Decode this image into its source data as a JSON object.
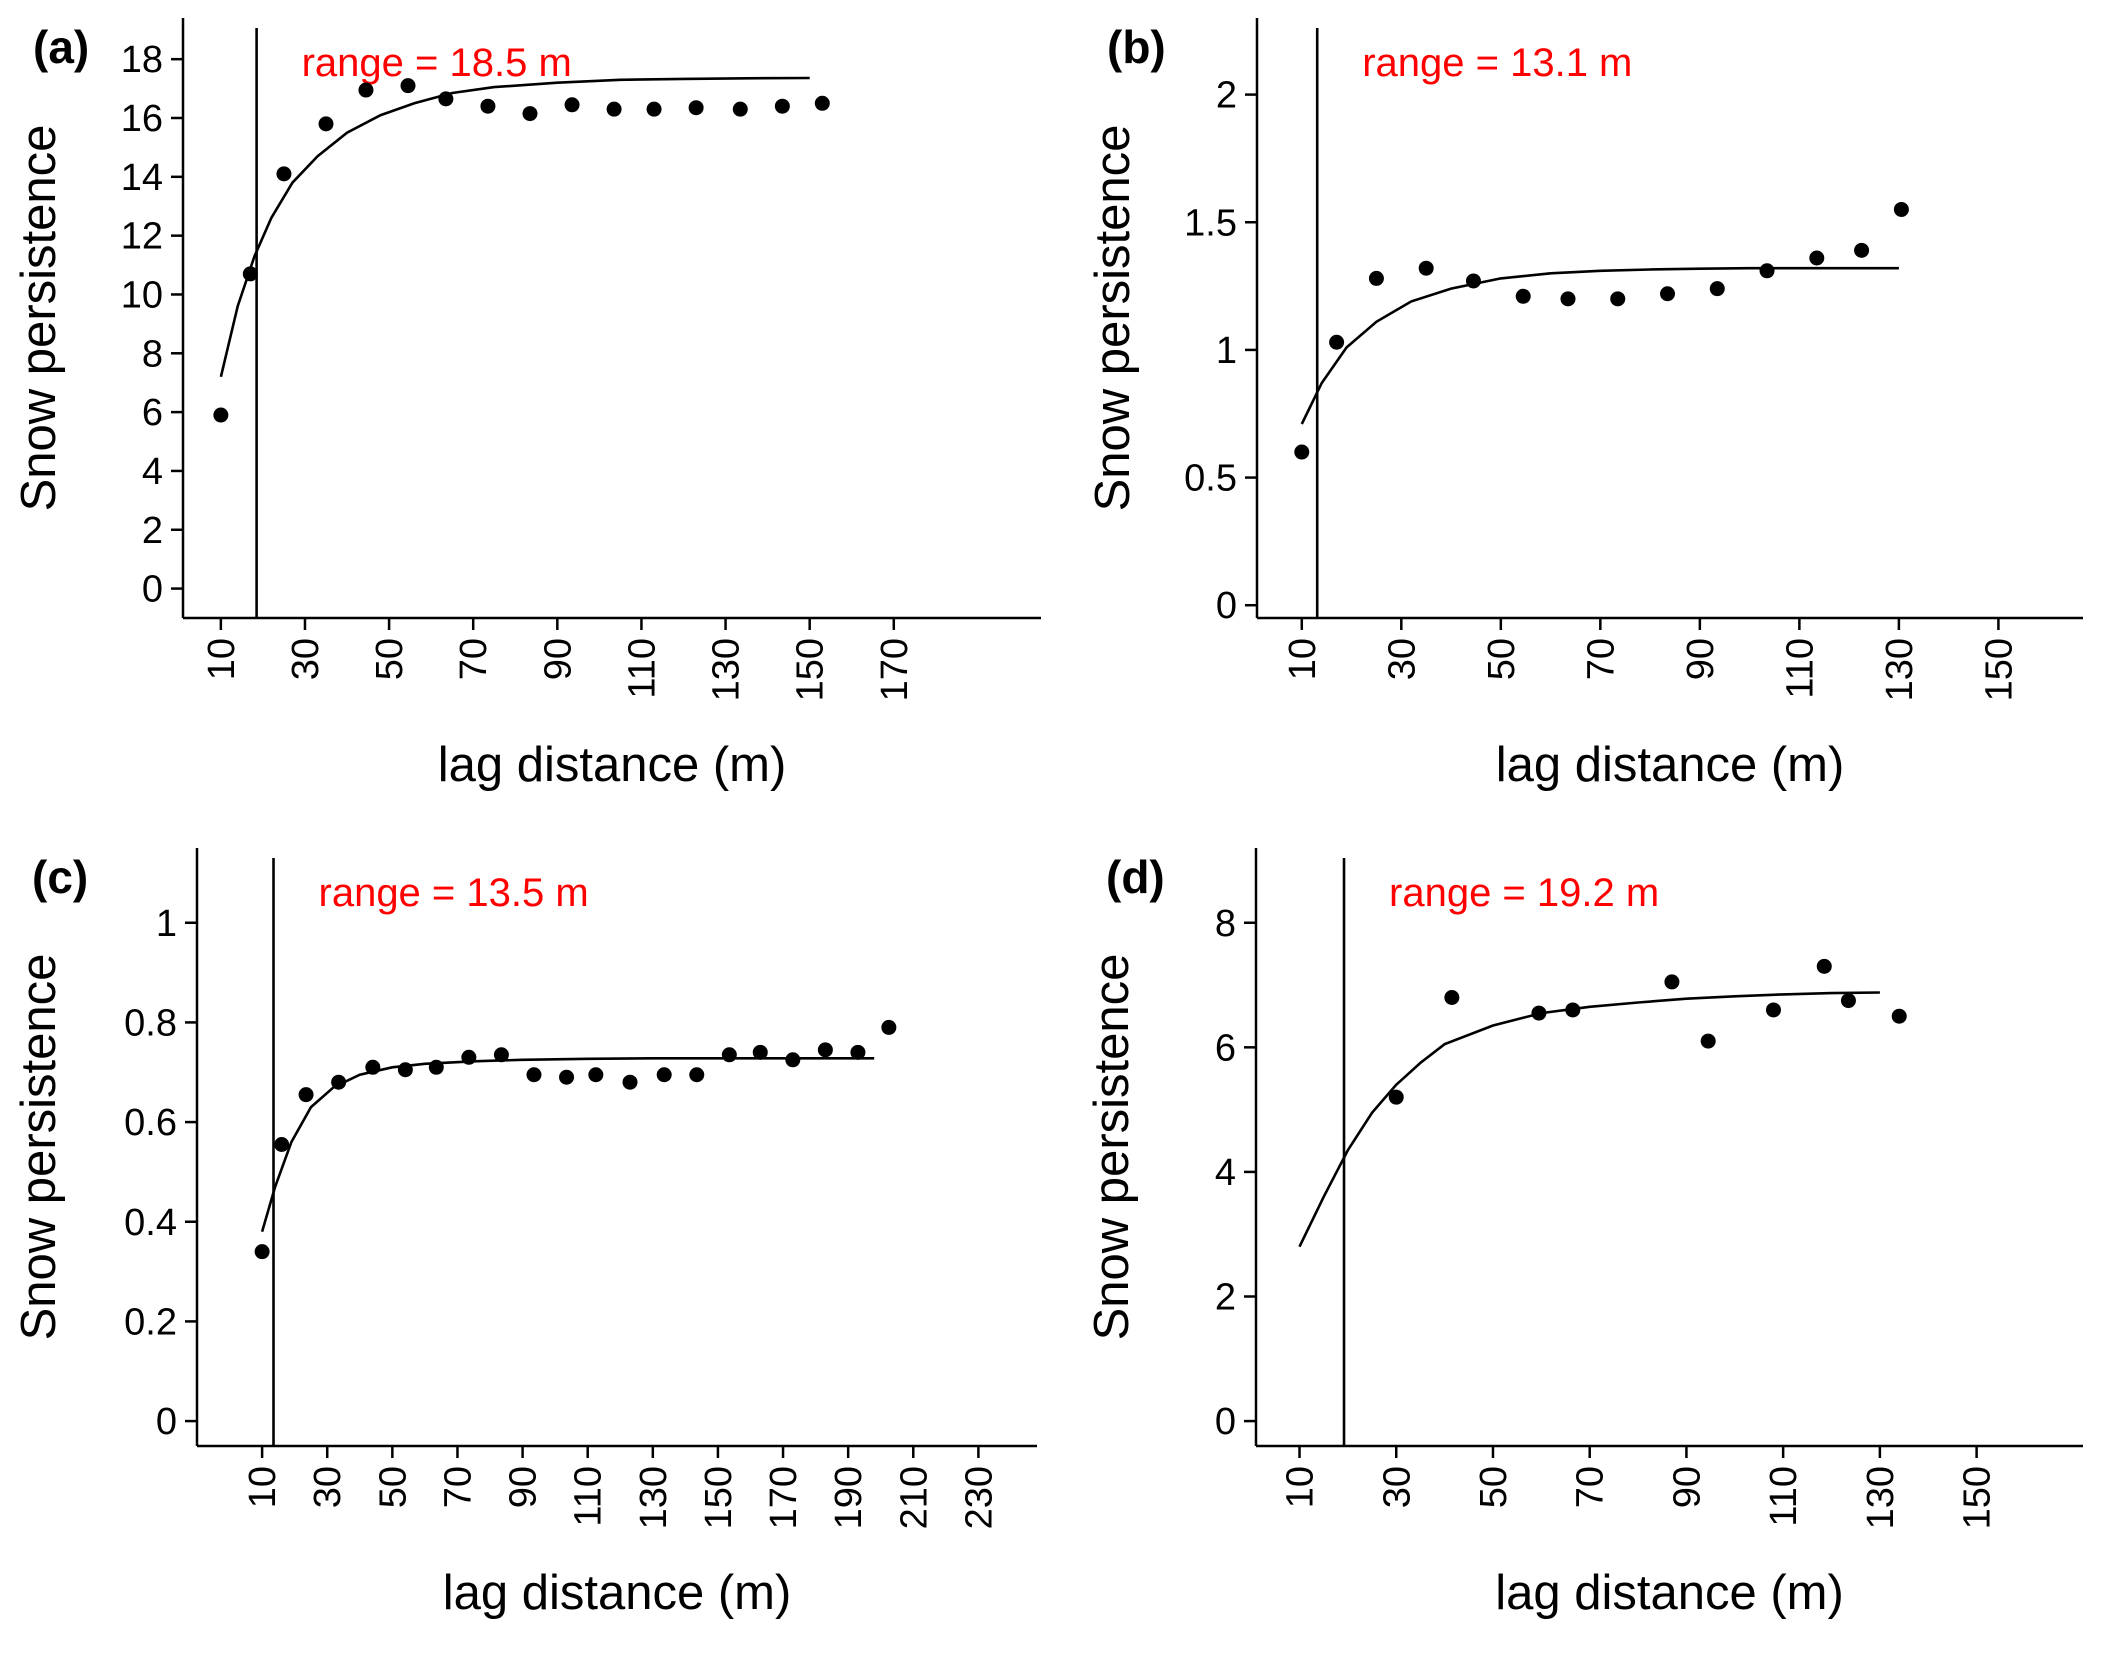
{
  "colors": {
    "annotation": "#FF0000",
    "ink": "#000000"
  },
  "chart_data": [
    {
      "type": "scatter",
      "panel_label": "(a)",
      "annotation": "range = 18.5 m",
      "range": 18.5,
      "xlabel": "lag distance (m)",
      "ylabel": "Snow persistence",
      "xlim": [
        1,
        205
      ],
      "ylim": [
        -1,
        19.4
      ],
      "xticks": [
        10,
        30,
        50,
        70,
        90,
        110,
        130,
        150,
        170
      ],
      "yticks": [
        0,
        2,
        4,
        6,
        8,
        10,
        12,
        14,
        16,
        18
      ],
      "ytick_labels": [
        "0",
        "2",
        "4",
        "6",
        "8",
        "10",
        "12",
        "14",
        "16",
        "18"
      ],
      "points": {
        "x": [
          10,
          17,
          25,
          35,
          44.5,
          54.5,
          63.5,
          73.5,
          83.5,
          93.5,
          103.5,
          113,
          123,
          133.5,
          143.5,
          153
        ],
        "y": [
          5.9,
          10.7,
          14.1,
          15.8,
          16.95,
          17.1,
          16.65,
          16.4,
          16.15,
          16.45,
          16.3,
          16.3,
          16.35,
          16.3,
          16.4,
          16.5
        ]
      },
      "fit_line": {
        "x": [
          10,
          14,
          18,
          22,
          27,
          33,
          40,
          48,
          56,
          65,
          75,
          90,
          105,
          120,
          135,
          150
        ],
        "y": [
          7.2,
          9.6,
          11.3,
          12.6,
          13.8,
          14.7,
          15.5,
          16.1,
          16.5,
          16.85,
          17.05,
          17.2,
          17.3,
          17.33,
          17.35,
          17.36
        ]
      }
    },
    {
      "type": "scatter",
      "panel_label": "(b)",
      "annotation": "range = 13.1 m",
      "range": 13.1,
      "xlabel": "lag distance (m)",
      "ylabel": "Snow persistence",
      "xlim": [
        1,
        167
      ],
      "ylim": [
        -0.05,
        2.3
      ],
      "xticks": [
        10,
        30,
        50,
        70,
        90,
        110,
        130,
        150
      ],
      "yticks": [
        0,
        0.5,
        1,
        1.5,
        2
      ],
      "ytick_labels": [
        "0",
        "0.5",
        "1",
        "1.5",
        "2"
      ],
      "points": {
        "x": [
          10,
          17,
          25,
          35,
          44.5,
          54.5,
          63.5,
          73.5,
          83.5,
          93.5,
          103.5,
          113.5,
          122.5,
          130.5
        ],
        "y": [
          0.6,
          1.03,
          1.28,
          1.32,
          1.27,
          1.21,
          1.2,
          1.2,
          1.22,
          1.24,
          1.31,
          1.36,
          1.39,
          1.55
        ]
      },
      "fit_line": {
        "x": [
          10,
          14,
          19,
          25,
          32,
          40,
          50,
          60,
          70,
          80,
          90,
          100,
          110,
          120,
          130
        ],
        "y": [
          0.71,
          0.87,
          1.01,
          1.11,
          1.19,
          1.24,
          1.28,
          1.3,
          1.31,
          1.315,
          1.318,
          1.32,
          1.32,
          1.32,
          1.32
        ]
      }
    },
    {
      "type": "scatter",
      "panel_label": "(c)",
      "annotation": "range = 13.5 m",
      "range": 13.5,
      "xlabel": "lag distance (m)",
      "ylabel": "Snow persistence",
      "xlim": [
        -10,
        248
      ],
      "ylim": [
        -0.05,
        1.15
      ],
      "xticks": [
        10,
        30,
        50,
        70,
        90,
        110,
        130,
        150,
        170,
        190,
        210,
        230
      ],
      "yticks": [
        0,
        0.2,
        0.4,
        0.6,
        0.8,
        1
      ],
      "ytick_labels": [
        "0",
        "0.2",
        "0.4",
        "0.6",
        "0.8",
        "1"
      ],
      "points": {
        "x": [
          10,
          16,
          23.5,
          33.5,
          44,
          54,
          63.5,
          73.5,
          83.5,
          93.5,
          103.5,
          112.5,
          123,
          133.5,
          143.5,
          153.5,
          163,
          173,
          183,
          193,
          202.5
        ],
        "y": [
          0.34,
          0.555,
          0.655,
          0.68,
          0.71,
          0.705,
          0.71,
          0.73,
          0.735,
          0.695,
          0.69,
          0.695,
          0.68,
          0.695,
          0.695,
          0.735,
          0.74,
          0.725,
          0.745,
          0.74,
          0.79
        ]
      },
      "fit_line": {
        "x": [
          10,
          14,
          19,
          25,
          32,
          40,
          50,
          60,
          75,
          90,
          110,
          130,
          150,
          170,
          198
        ],
        "y": [
          0.38,
          0.47,
          0.56,
          0.63,
          0.67,
          0.695,
          0.71,
          0.717,
          0.722,
          0.725,
          0.727,
          0.728,
          0.728,
          0.728,
          0.728
        ]
      }
    },
    {
      "type": "scatter",
      "panel_label": "(d)",
      "annotation": "range = 19.2 m",
      "range": 19.2,
      "xlabel": "lag distance (m)",
      "ylabel": "Snow persistence",
      "xlim": [
        1,
        172
      ],
      "ylim": [
        -0.4,
        9.2
      ],
      "xticks": [
        10,
        30,
        50,
        70,
        90,
        110,
        130,
        150
      ],
      "yticks": [
        0,
        2,
        4,
        6,
        8
      ],
      "ytick_labels": [
        "0",
        "2",
        "4",
        "6",
        "8"
      ],
      "points": {
        "x": [
          30,
          41.5,
          59.5,
          66.5,
          87,
          94.5,
          108,
          118.5,
          123.5,
          134
        ],
        "y": [
          5.2,
          6.8,
          6.55,
          6.6,
          7.05,
          6.1,
          6.6,
          7.3,
          6.75,
          6.5
        ]
      },
      "fit_line": {
        "x": [
          10,
          15,
          20,
          25,
          30,
          35,
          40,
          50,
          60,
          70,
          80,
          90,
          100,
          110,
          120,
          130
        ],
        "y": [
          2.8,
          3.6,
          4.35,
          4.95,
          5.4,
          5.75,
          6.05,
          6.35,
          6.55,
          6.65,
          6.72,
          6.78,
          6.82,
          6.85,
          6.87,
          6.88
        ]
      }
    }
  ]
}
